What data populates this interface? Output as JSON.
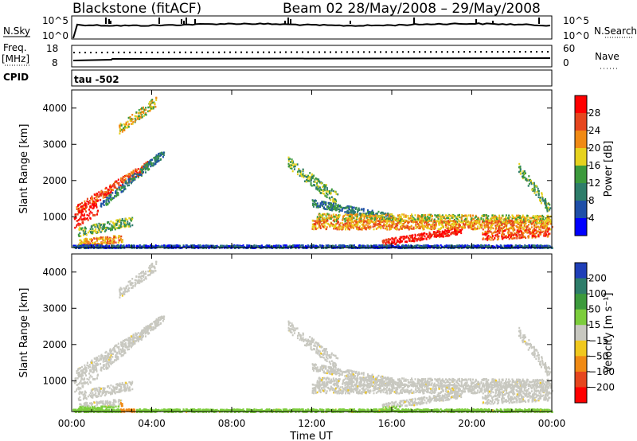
{
  "header": {
    "station": "Blackstone (fitACF)",
    "beam_date": "Beam 02  28/May/2008 – 29/May/2008"
  },
  "nsky_panel": {
    "left_label": "N.Sky",
    "right_label": "N.Search",
    "tick_top": "10^5",
    "tick_bottom": "10^0",
    "right_tick_top": "10^5",
    "right_tick_bottom": "10^0"
  },
  "freq_panel": {
    "left_label_line1": "Freq.",
    "left_label_line2": "[MHz]",
    "right_label": "Nave",
    "left_tick_top": "18",
    "left_tick_bottom": "8",
    "right_tick_top": "60",
    "right_tick_bottom": "0"
  },
  "cpid_panel": {
    "label": "CPID",
    "value": "tau -502"
  },
  "chart_data": [
    {
      "type": "heatmap",
      "panel": "power",
      "ylabel": "Slant Range [km]",
      "yticks": [
        "1000",
        "2000",
        "3000",
        "4000"
      ],
      "ylim": [
        150,
        4500
      ],
      "colorbar_label": "Power [dB]",
      "colorbar_ticks": [
        "4",
        "8",
        "12",
        "16",
        "20",
        "24",
        "28"
      ],
      "colorbar_colors": [
        "#0000ff",
        "#1f4fa8",
        "#2e7d6a",
        "#3c9a3c",
        "#e6d21e",
        "#f08a14",
        "#e6461e",
        "#ff0000"
      ]
    },
    {
      "type": "heatmap",
      "panel": "velocity",
      "ylabel": "Slant Range [km]",
      "yticks": [
        "1000",
        "2000",
        "3000",
        "4000"
      ],
      "ylim": [
        150,
        4500
      ],
      "colorbar_label": "Velocity [m s⁻¹]",
      "colorbar_ticks": [
        "200",
        "100",
        "50",
        "15",
        "−15",
        "−50",
        "−100",
        "−200"
      ],
      "colorbar_colors": [
        "#1f3fb8",
        "#2e7d6a",
        "#3c9a3c",
        "#7ccd3c",
        "#c8c8c0",
        "#f0c81e",
        "#f08a14",
        "#e6461e",
        "#ff0000"
      ]
    }
  ],
  "xaxis": {
    "label": "Time UT",
    "ticks": [
      "00:00",
      "04:00",
      "08:00",
      "12:00",
      "16:00",
      "20:00",
      "00:00"
    ]
  }
}
